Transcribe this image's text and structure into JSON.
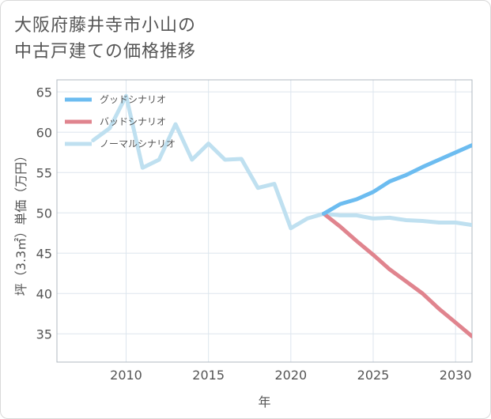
{
  "title_line1": "大阪府藤井寺市小山の",
  "title_line2": "中古戸建ての価格推移",
  "chart_data": {
    "type": "line",
    "title": "大阪府藤井寺市小山の中古戸建ての価格推移",
    "xlabel": "年",
    "ylabel": "坪（3.3㎡）単価（万円）",
    "xlim": [
      2005.8,
      2031
    ],
    "ylim": [
      31.5,
      66.5
    ],
    "xticks": [
      2010,
      2015,
      2020,
      2025,
      2030
    ],
    "yticks": [
      35,
      40,
      45,
      50,
      55,
      60,
      65
    ],
    "legend_position": "top-left",
    "series": [
      {
        "name": "グッドシナリオ",
        "color": "#6cbcf0",
        "x": [
          2022,
          2023,
          2024,
          2025,
          2026,
          2027,
          2028,
          2029,
          2030,
          2031
        ],
        "y": [
          49.9,
          51.1,
          51.7,
          52.6,
          53.9,
          54.7,
          55.7,
          56.6,
          57.5,
          58.4
        ]
      },
      {
        "name": "バッドシナリオ",
        "color": "#e0848e",
        "x": [
          2022,
          2023,
          2024,
          2025,
          2026,
          2027,
          2028,
          2029,
          2030,
          2031
        ],
        "y": [
          49.9,
          48.3,
          46.5,
          44.8,
          43.0,
          41.5,
          40.0,
          38.1,
          36.4,
          34.7
        ]
      },
      {
        "name": "ノーマルシナリオ",
        "color": "#bfe0f0",
        "x": [
          2008,
          2009,
          2010,
          2011,
          2012,
          2013,
          2014,
          2015,
          2016,
          2017,
          2018,
          2019,
          2020,
          2021,
          2022,
          2023,
          2024,
          2025,
          2026,
          2027,
          2028,
          2029,
          2030,
          2031
        ],
        "y": [
          59.0,
          60.5,
          64.5,
          55.6,
          56.6,
          61.0,
          56.6,
          58.6,
          56.6,
          56.7,
          53.1,
          53.6,
          48.1,
          49.3,
          49.9,
          49.7,
          49.7,
          49.3,
          49.4,
          49.1,
          49.0,
          48.8,
          48.8,
          48.5
        ]
      }
    ]
  }
}
